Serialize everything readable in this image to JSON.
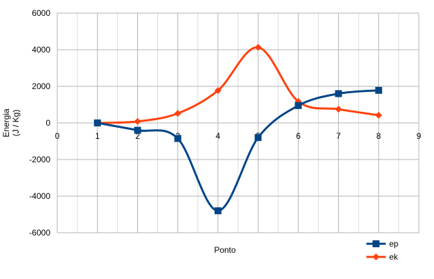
{
  "chart_data": {
    "type": "line",
    "title": "",
    "xlabel": "Ponto",
    "ylabel_lines": [
      "Energia",
      "(J / Kg)"
    ],
    "xlim": [
      0,
      9
    ],
    "ylim": [
      -6000,
      6000
    ],
    "xticks": [
      "0",
      "1",
      "2",
      "3",
      "4",
      "5",
      "6",
      "7",
      "8",
      "9"
    ],
    "yticks": [
      "6000",
      "4000",
      "2000",
      "0",
      "-2000",
      "-4000",
      "-6000"
    ],
    "grid": true,
    "legend_position": "bottom-right",
    "series": [
      {
        "name": "ep",
        "color": "#004586",
        "marker": "square",
        "x": [
          1,
          2,
          3,
          4,
          5,
          6,
          7,
          8
        ],
        "values": [
          0,
          -400,
          -850,
          -4800,
          -800,
          950,
          1600,
          1780
        ]
      },
      {
        "name": "ek",
        "color": "#ff420e",
        "marker": "diamond",
        "x": [
          1,
          2,
          3,
          4,
          5,
          6,
          7,
          8
        ],
        "values": [
          0,
          80,
          520,
          1770,
          4130,
          1170,
          750,
          420
        ]
      }
    ]
  }
}
